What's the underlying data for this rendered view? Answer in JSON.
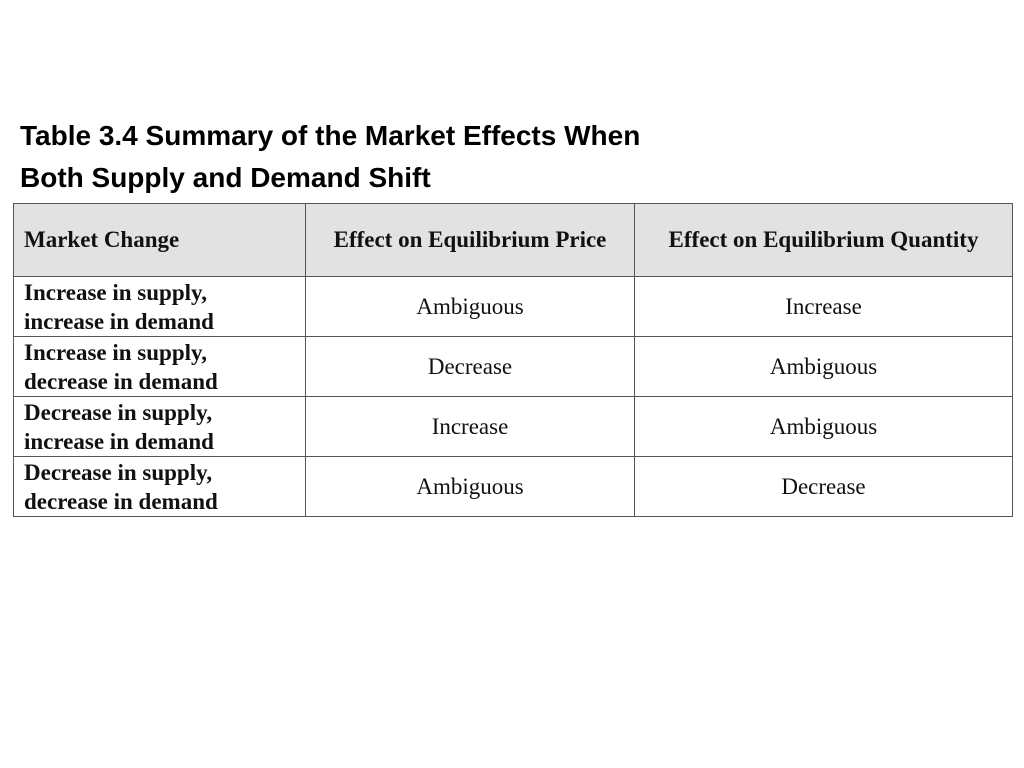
{
  "title": {
    "line1": "Table 3.4  Summary of the Market Effects When",
    "line2": "Both Supply and Demand Shift"
  },
  "table": {
    "headers": [
      "Market Change",
      "Effect on Equilibrium Price",
      "Effect on Equilibrium Quantity"
    ],
    "rows": [
      {
        "change_line1": "Increase in supply,",
        "change_line2": "increase in demand",
        "price": "Ambiguous",
        "quantity": "Increase"
      },
      {
        "change_line1": "Increase in supply,",
        "change_line2": "decrease in demand",
        "price": "Decrease",
        "quantity": "Ambiguous"
      },
      {
        "change_line1": "Decrease in supply,",
        "change_line2": "increase in demand",
        "price": "Increase",
        "quantity": "Ambiguous"
      },
      {
        "change_line1": "Decrease in supply,",
        "change_line2": "decrease in demand",
        "price": "Ambiguous",
        "quantity": "Decrease"
      }
    ],
    "colors": {
      "header_bg": "#e2e2e2",
      "border": "#555555"
    }
  }
}
